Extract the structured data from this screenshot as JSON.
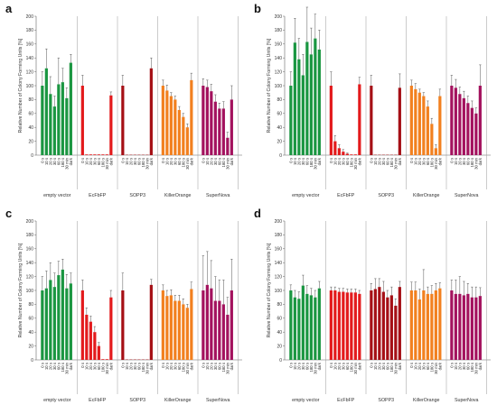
{
  "figure": {
    "conditions": [
      "0 s",
      "10 s",
      "20 s",
      "30 s",
      "60 s",
      "180 s",
      "30 min",
      "dark"
    ],
    "groups": [
      "empty vector",
      "EcFbFP",
      "SOPP3",
      "KillerOrange",
      "SuperNova"
    ],
    "group_colors": [
      "#1a9641",
      "#e31a1c",
      "#a50f15",
      "#f2801f",
      "#a3125e"
    ]
  },
  "chart_data": [
    {
      "type": "bar",
      "panel_label": "a",
      "ylabel": "Relative Number of Colony Forming Units [%]",
      "ylim": [
        0,
        200
      ],
      "yticks": [
        0,
        20,
        40,
        60,
        80,
        100,
        120,
        140,
        160,
        180,
        200
      ],
      "grid": false,
      "categories": [
        "0 s",
        "10 s",
        "20 s",
        "30 s",
        "60 s",
        "180 s",
        "30 min",
        "dark"
      ],
      "series": [
        {
          "name": "empty vector",
          "values": [
            100,
            125,
            88,
            70,
            102,
            105,
            82,
            133
          ],
          "errors": [
            20,
            28,
            25,
            15,
            38,
            20,
            15,
            12
          ]
        },
        {
          "name": "EcFbFP",
          "values": [
            100,
            1,
            1,
            1,
            1,
            1,
            1,
            86
          ],
          "errors": [
            15,
            0,
            0,
            0,
            0,
            0,
            0,
            5
          ]
        },
        {
          "name": "SOPP3",
          "values": [
            100,
            0,
            0,
            0,
            0,
            0,
            0,
            125
          ],
          "errors": [
            15,
            0,
            0,
            0,
            0,
            0,
            0,
            15
          ]
        },
        {
          "name": "KillerOrange",
          "values": [
            100,
            93,
            85,
            80,
            65,
            55,
            40,
            108
          ],
          "errors": [
            8,
            8,
            5,
            5,
            5,
            5,
            5,
            10
          ]
        },
        {
          "name": "SuperNova",
          "values": [
            100,
            98,
            92,
            77,
            67,
            67,
            25,
            80
          ],
          "errors": [
            10,
            10,
            10,
            10,
            8,
            10,
            8,
            20
          ]
        }
      ]
    },
    {
      "type": "bar",
      "panel_label": "b",
      "ylabel": "Relative Number of Colony Forming Units [%]",
      "ylim": [
        0,
        200
      ],
      "yticks": [
        0,
        20,
        40,
        60,
        80,
        100,
        120,
        140,
        160,
        180,
        200
      ],
      "grid": false,
      "categories": [
        "0 s",
        "10 s",
        "20 s",
        "30 s",
        "60 s",
        "180 s",
        "30 min",
        "dark"
      ],
      "series": [
        {
          "name": "empty vector",
          "values": [
            100,
            162,
            138,
            115,
            163,
            145,
            168,
            152
          ],
          "errors": [
            20,
            35,
            30,
            30,
            50,
            38,
            35,
            28
          ]
        },
        {
          "name": "EcFbFP",
          "values": [
            100,
            20,
            10,
            5,
            2,
            1,
            1,
            102
          ],
          "errors": [
            20,
            8,
            5,
            3,
            1,
            0,
            0,
            10
          ]
        },
        {
          "name": "SOPP3",
          "values": [
            100,
            0,
            0,
            0,
            0,
            0,
            0,
            97
          ],
          "errors": [
            15,
            0,
            0,
            0,
            0,
            0,
            0,
            20
          ]
        },
        {
          "name": "KillerOrange",
          "values": [
            100,
            95,
            90,
            85,
            70,
            45,
            10,
            85
          ],
          "errors": [
            8,
            8,
            5,
            5,
            8,
            8,
            5,
            10
          ]
        },
        {
          "name": "SuperNova",
          "values": [
            100,
            97,
            88,
            82,
            75,
            68,
            60,
            100
          ],
          "errors": [
            15,
            12,
            10,
            10,
            10,
            10,
            8,
            30
          ]
        }
      ]
    },
    {
      "type": "bar",
      "panel_label": "c",
      "ylabel": "Relative Number of Colony Forming Units [%]",
      "ylim": [
        0,
        200
      ],
      "yticks": [
        0,
        20,
        40,
        60,
        80,
        100,
        120,
        140,
        160,
        180,
        200
      ],
      "grid": false,
      "categories": [
        "0 s",
        "10 s",
        "20 s",
        "30 s",
        "60 s",
        "180 s",
        "30 min",
        "dark"
      ],
      "series": [
        {
          "name": "empty vector",
          "values": [
            100,
            103,
            115,
            105,
            122,
            130,
            103,
            110
          ],
          "errors": [
            20,
            25,
            25,
            20,
            20,
            15,
            20,
            15
          ]
        },
        {
          "name": "EcFbFP",
          "values": [
            100,
            65,
            55,
            40,
            20,
            1,
            1,
            90
          ],
          "errors": [
            15,
            10,
            8,
            8,
            5,
            0,
            0,
            10
          ]
        },
        {
          "name": "SOPP3",
          "values": [
            100,
            0,
            0,
            0,
            0,
            0,
            0,
            108
          ],
          "errors": [
            25,
            0,
            0,
            0,
            0,
            0,
            0,
            8
          ]
        },
        {
          "name": "KillerOrange",
          "values": [
            100,
            92,
            93,
            85,
            85,
            80,
            75,
            102
          ],
          "errors": [
            8,
            8,
            8,
            8,
            8,
            8,
            5,
            10
          ]
        },
        {
          "name": "SuperNova",
          "values": [
            100,
            108,
            103,
            85,
            85,
            80,
            65,
            100
          ],
          "errors": [
            50,
            48,
            40,
            35,
            30,
            35,
            25,
            45
          ]
        }
      ]
    },
    {
      "type": "bar",
      "panel_label": "d",
      "ylabel": "Relative Number of Colony Forming Units [%]",
      "ylim": [
        0,
        200
      ],
      "yticks": [
        0,
        20,
        40,
        60,
        80,
        100,
        120,
        140,
        160,
        180,
        200
      ],
      "grid": false,
      "categories": [
        "0 s",
        "10 s",
        "20 s",
        "30 s",
        "60 s",
        "180 s",
        "30 min",
        "dark"
      ],
      "series": [
        {
          "name": "empty vector",
          "values": [
            100,
            90,
            88,
            107,
            95,
            93,
            90,
            103
          ],
          "errors": [
            8,
            10,
            10,
            15,
            12,
            10,
            10,
            10
          ]
        },
        {
          "name": "EcFbFP",
          "values": [
            100,
            100,
            98,
            98,
            97,
            97,
            97,
            95
          ],
          "errors": [
            5,
            5,
            5,
            5,
            5,
            5,
            5,
            5
          ]
        },
        {
          "name": "SOPP3",
          "values": [
            100,
            102,
            105,
            98,
            90,
            93,
            78,
            105
          ],
          "errors": [
            10,
            15,
            12,
            15,
            10,
            12,
            10,
            8
          ]
        },
        {
          "name": "KillerOrange",
          "values": [
            100,
            100,
            87,
            100,
            95,
            95,
            100,
            103
          ],
          "errors": [
            12,
            12,
            15,
            30,
            10,
            12,
            10,
            8
          ]
        },
        {
          "name": "SuperNova",
          "values": [
            100,
            95,
            95,
            93,
            95,
            90,
            90,
            92
          ],
          "errors": [
            15,
            20,
            25,
            20,
            15,
            15,
            15,
            12
          ]
        }
      ]
    }
  ]
}
